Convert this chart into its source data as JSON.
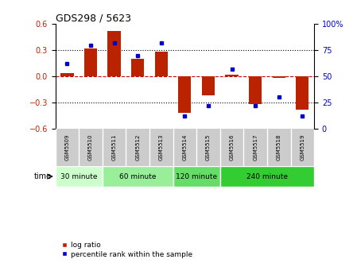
{
  "title": "GDS298 / 5623",
  "samples": [
    "GSM5509",
    "GSM5510",
    "GSM5511",
    "GSM5512",
    "GSM5513",
    "GSM5514",
    "GSM5515",
    "GSM5516",
    "GSM5517",
    "GSM5518",
    "GSM5519"
  ],
  "log_ratio": [
    0.04,
    0.32,
    0.52,
    0.2,
    0.28,
    -0.42,
    -0.22,
    0.02,
    -0.32,
    -0.02,
    -0.38
  ],
  "percentile": [
    62,
    80,
    82,
    70,
    82,
    12,
    22,
    57,
    22,
    30,
    12
  ],
  "bar_color": "#BB2200",
  "dot_color": "#0000CC",
  "ylim_left": [
    -0.6,
    0.6
  ],
  "ylim_right": [
    0,
    100
  ],
  "yticks_left": [
    -0.6,
    -0.3,
    0.0,
    0.3,
    0.6
  ],
  "yticks_right": [
    0,
    25,
    50,
    75,
    100
  ],
  "ytick_labels_right": [
    "0",
    "25",
    "50",
    "75",
    "100%"
  ],
  "time_groups": [
    {
      "label": "30 minute",
      "start": 0,
      "end": 2,
      "color": "#CCFFCC"
    },
    {
      "label": "60 minute",
      "start": 2,
      "end": 5,
      "color": "#99EE99"
    },
    {
      "label": "120 minute",
      "start": 5,
      "end": 7,
      "color": "#66DD66"
    },
    {
      "label": "240 minute",
      "start": 7,
      "end": 11,
      "color": "#33CC33"
    }
  ],
  "legend_log_ratio": "log ratio",
  "legend_percentile": "percentile rank within the sample",
  "bg_color": "#FFFFFF",
  "tick_area_color": "#CCCCCC"
}
